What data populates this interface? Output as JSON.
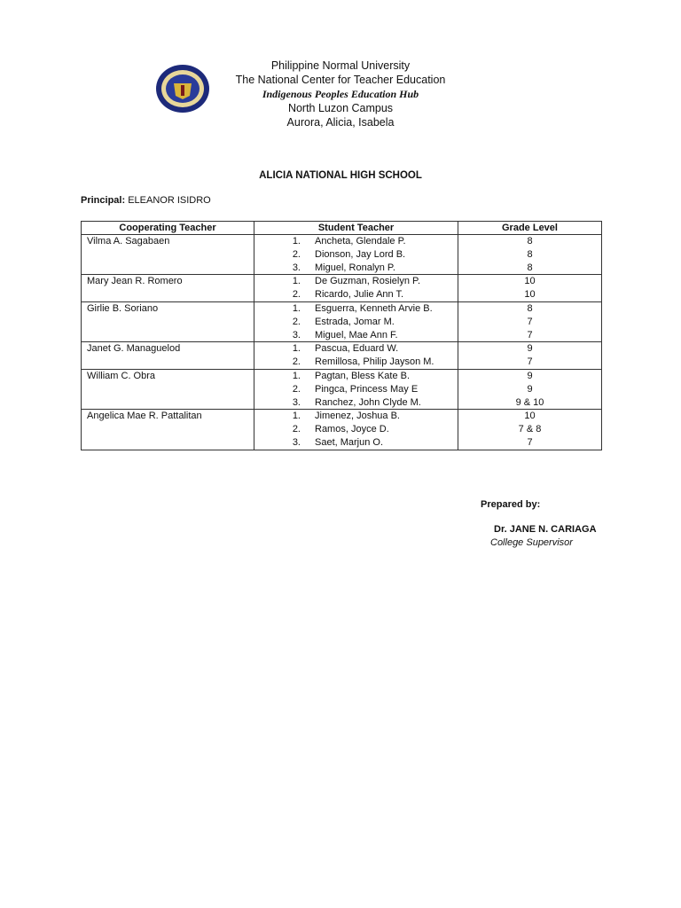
{
  "header": {
    "line1": "Philippine Normal University",
    "line2": "The National Center for Teacher Education",
    "line3": "Indigenous Peoples Education Hub",
    "line4": "North Luzon Campus",
    "line5": "Aurora, Alicia, Isabela",
    "logo_text": "PHILIPPINE NORMAL UNIVERSITY 1901"
  },
  "school": "ALICIA NATIONAL HIGH SCHOOL",
  "principal": {
    "label": "Principal:",
    "name": "ELEANOR ISIDRO"
  },
  "table": {
    "headers": [
      "Cooperating Teacher",
      "Student Teacher",
      "Grade Level"
    ],
    "groups": [
      {
        "teacher": "Vilma A. Sagabaen",
        "students": [
          {
            "n": "1.",
            "name": "Ancheta, Glendale P.",
            "grade": "8"
          },
          {
            "n": "2.",
            "name": "Dionson, Jay Lord B.",
            "grade": "8"
          },
          {
            "n": "3.",
            "name": "Miguel, Ronalyn P.",
            "grade": "8"
          }
        ]
      },
      {
        "teacher": "Mary Jean R. Romero",
        "students": [
          {
            "n": "1.",
            "name": "De Guzman, Rosielyn P.",
            "grade": "10"
          },
          {
            "n": "2.",
            "name": "Ricardo, Julie Ann T.",
            "grade": "10"
          }
        ]
      },
      {
        "teacher": "Girlie B. Soriano",
        "students": [
          {
            "n": "1.",
            "name": "Esguerra, Kenneth Arvie B.",
            "grade": "8"
          },
          {
            "n": "2.",
            "name": "Estrada, Jomar M.",
            "grade": "7"
          },
          {
            "n": "3.",
            "name": "Miguel, Mae Ann F.",
            "grade": "7"
          }
        ]
      },
      {
        "teacher": "Janet G. Managuelod",
        "students": [
          {
            "n": "1.",
            "name": "Pascua, Eduard W.",
            "grade": "9"
          },
          {
            "n": "2.",
            "name": "Remillosa, Philip Jayson M.",
            "grade": "7"
          }
        ]
      },
      {
        "teacher": "William C. Obra",
        "students": [
          {
            "n": "1.",
            "name": "Pagtan, Bless Kate B.",
            "grade": "9"
          },
          {
            "n": "2.",
            "name": "Pingca, Princess May E",
            "grade": "9"
          },
          {
            "n": "3.",
            "name": "Ranchez, John Clyde M.",
            "grade": "9 & 10"
          }
        ]
      },
      {
        "teacher": "Angelica Mae R. Pattalitan",
        "students": [
          {
            "n": "1.",
            "name": "Jimenez, Joshua B.",
            "grade": "10"
          },
          {
            "n": "2.",
            "name": "Ramos, Joyce D.",
            "grade": "7 & 8"
          },
          {
            "n": "3.",
            "name": "Saet, Marjun O.",
            "grade": "7"
          }
        ]
      }
    ]
  },
  "footer": {
    "prepared_by": "Prepared by:",
    "name": "Dr. JANE N. CARIAGA",
    "role": "College Supervisor"
  }
}
